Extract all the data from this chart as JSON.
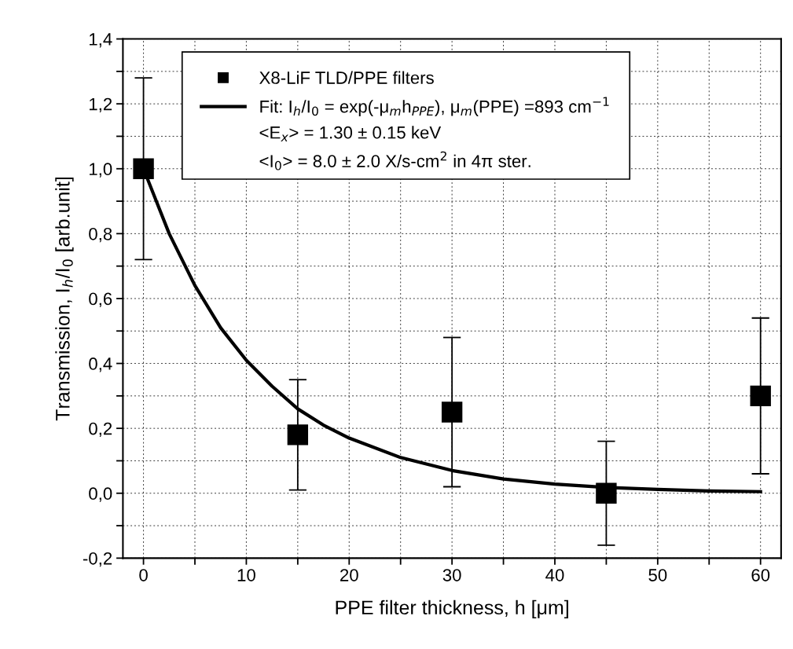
{
  "chart_data": {
    "type": "scatter",
    "xlabel": "PPE filter thickness, h [μm]",
    "ylabel": "Transmission, I$_{h}$/I$_{0}$ [arb.unit]",
    "series": [
      {
        "name": "X8-LiF TLD/PPE filters",
        "color": "#000000",
        "marker": "square",
        "x": [
          0,
          15,
          30,
          45,
          60
        ],
        "values": [
          1.0,
          0.18,
          0.25,
          0.0,
          0.3
        ],
        "errors": [
          [
            0.72,
            1.28
          ],
          [
            0.01,
            0.35
          ],
          [
            0.02,
            0.48
          ],
          [
            -0.16,
            0.16
          ],
          [
            0.06,
            0.54
          ]
        ]
      },
      {
        "name": "Fit: I$_{h}$/I$_{0}$ = exp(-μ$_{m}$h$_{PPE}$), μ$_{m}$(PPE) =893 cm$^{−1}$",
        "type": "line",
        "color": "#000000",
        "marker": "none",
        "line_style": "solid",
        "x": [
          0,
          2.5,
          5,
          7.5,
          10,
          12.5,
          15,
          17.5,
          20,
          25,
          30,
          35,
          40,
          45,
          50,
          55,
          60
        ],
        "values": [
          1.0,
          0.8,
          0.64,
          0.51,
          0.41,
          0.33,
          0.26,
          0.21,
          0.17,
          0.11,
          0.07,
          0.044,
          0.028,
          0.018,
          0.012,
          0.007,
          0.005
        ]
      }
    ],
    "annotations": [
      "<E$_{x}$> = 1.30 ± 0.15 keV",
      "<I$_{0}$> = 8.0 ± 2.0 X/s-cm$^{2}$ in 4π ster."
    ],
    "xlim": [
      -2,
      62
    ],
    "xticks": [
      0,
      {
        "value": 5,
        "label": null
      },
      10,
      {
        "value": 15,
        "label": null
      },
      20,
      {
        "value": 25,
        "label": null
      },
      30,
      {
        "value": 35,
        "label": null
      },
      40,
      {
        "value": 45,
        "label": null
      },
      50,
      {
        "value": 55,
        "label": null
      },
      60
    ],
    "ylim": [
      -0.2,
      1.4
    ],
    "yticks": [
      {
        "value": -0.2,
        "label": "-0,2"
      },
      {
        "value": -0.1,
        "label": null
      },
      {
        "value": 0.0,
        "label": "0,0"
      },
      {
        "value": 0.1,
        "label": null
      },
      {
        "value": 0.2,
        "label": "0,2"
      },
      {
        "value": 0.3,
        "label": null
      },
      {
        "value": 0.4,
        "label": "0,4"
      },
      {
        "value": 0.5,
        "label": null
      },
      {
        "value": 0.6,
        "label": "0,6"
      },
      {
        "value": 0.7,
        "label": null
      },
      {
        "value": 0.8,
        "label": "0,8"
      },
      {
        "value": 0.9,
        "label": null
      },
      {
        "value": 1.0,
        "label": "1,0"
      },
      {
        "value": 1.1,
        "label": null
      },
      {
        "value": 1.2,
        "label": "1,2"
      },
      {
        "value": 1.3,
        "label": null
      },
      {
        "value": 1.4,
        "label": "1,4"
      }
    ],
    "grid": true,
    "legend": "top"
  }
}
